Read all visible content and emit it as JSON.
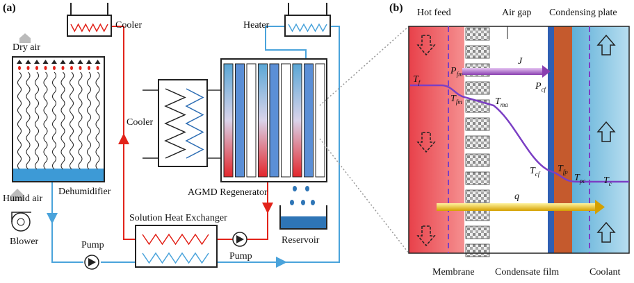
{
  "panel_a": {
    "label": "(a)",
    "cooler_top": "Cooler",
    "heater": "Heater",
    "dry_air": "Dry air",
    "cooler_left": "Cooler",
    "dehumidifier": "Dehumidifier",
    "humid_air": "Humid air",
    "blower": "Blower",
    "regenerator": "AGMD Regenerator",
    "heat_exchanger": "Solution Heat Exchanger",
    "pump_left": "Pump",
    "pump_right": "Pump",
    "reservoir": "Reservoir"
  },
  "panel_b": {
    "label": "(b)",
    "hot_feed": "Hot feed",
    "air_gap": "Air gap",
    "condensing_plate": "Condensing plate",
    "mass_flux": "J",
    "heat_flux": "q",
    "membrane": "Membrane",
    "condensate_film": "Condensate film",
    "coolant": "Coolant",
    "symbols": [
      {
        "main": "T",
        "sub": "f"
      },
      {
        "main": "T",
        "sub": "fm"
      },
      {
        "main": "T",
        "sub": "ma"
      },
      {
        "main": "T",
        "sub": "cf"
      },
      {
        "main": "T",
        "sub": "fp"
      },
      {
        "main": "T",
        "sub": "pc"
      },
      {
        "main": "T",
        "sub": "c"
      },
      {
        "main": "P",
        "sub": "fm"
      },
      {
        "main": "P",
        "sub": "cf"
      }
    ]
  }
}
